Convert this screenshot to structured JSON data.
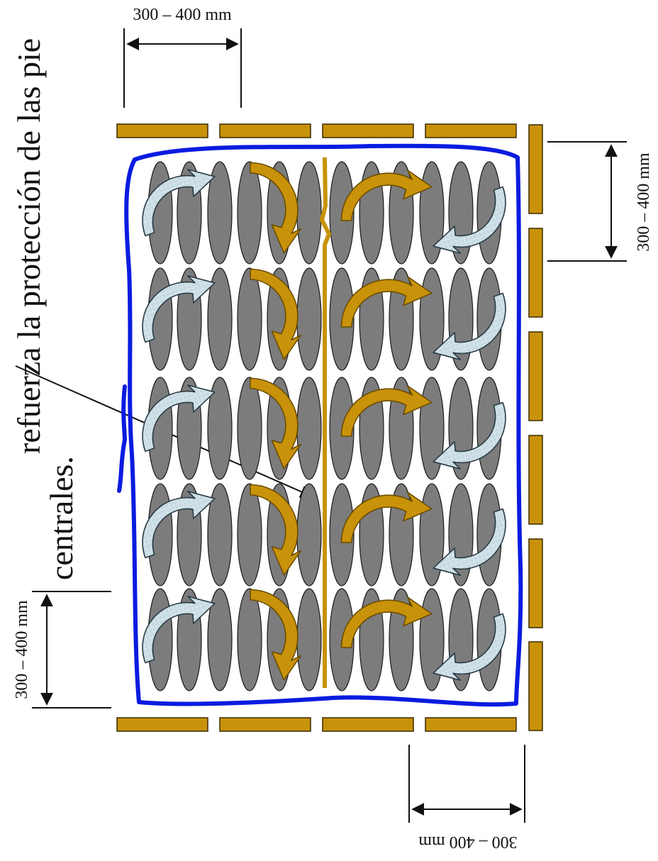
{
  "text": {
    "heading_line1": "refuerza   la   protección   de   las   pie",
    "heading_line2": "centrales."
  },
  "dimensions": {
    "top": "300 – 400 mm",
    "right": "300 – 400 mm",
    "left": "300 – 400 mm",
    "bottom": "300 – 400 mm"
  },
  "colors": {
    "slab_fill": "#c8920a",
    "slab_stroke": "#3a2a00",
    "boundary": "#0a1be0",
    "bar": "#7c7c7c",
    "gold_arrow": "#c8920a",
    "light_arrow": "#c8dbe3",
    "light_arrow_stroke": "#2a3a44"
  },
  "icons": {
    "flow_arrow_gold": "curved-arrow-gold-icon",
    "flow_arrow_light": "curved-arrow-light-icon"
  }
}
